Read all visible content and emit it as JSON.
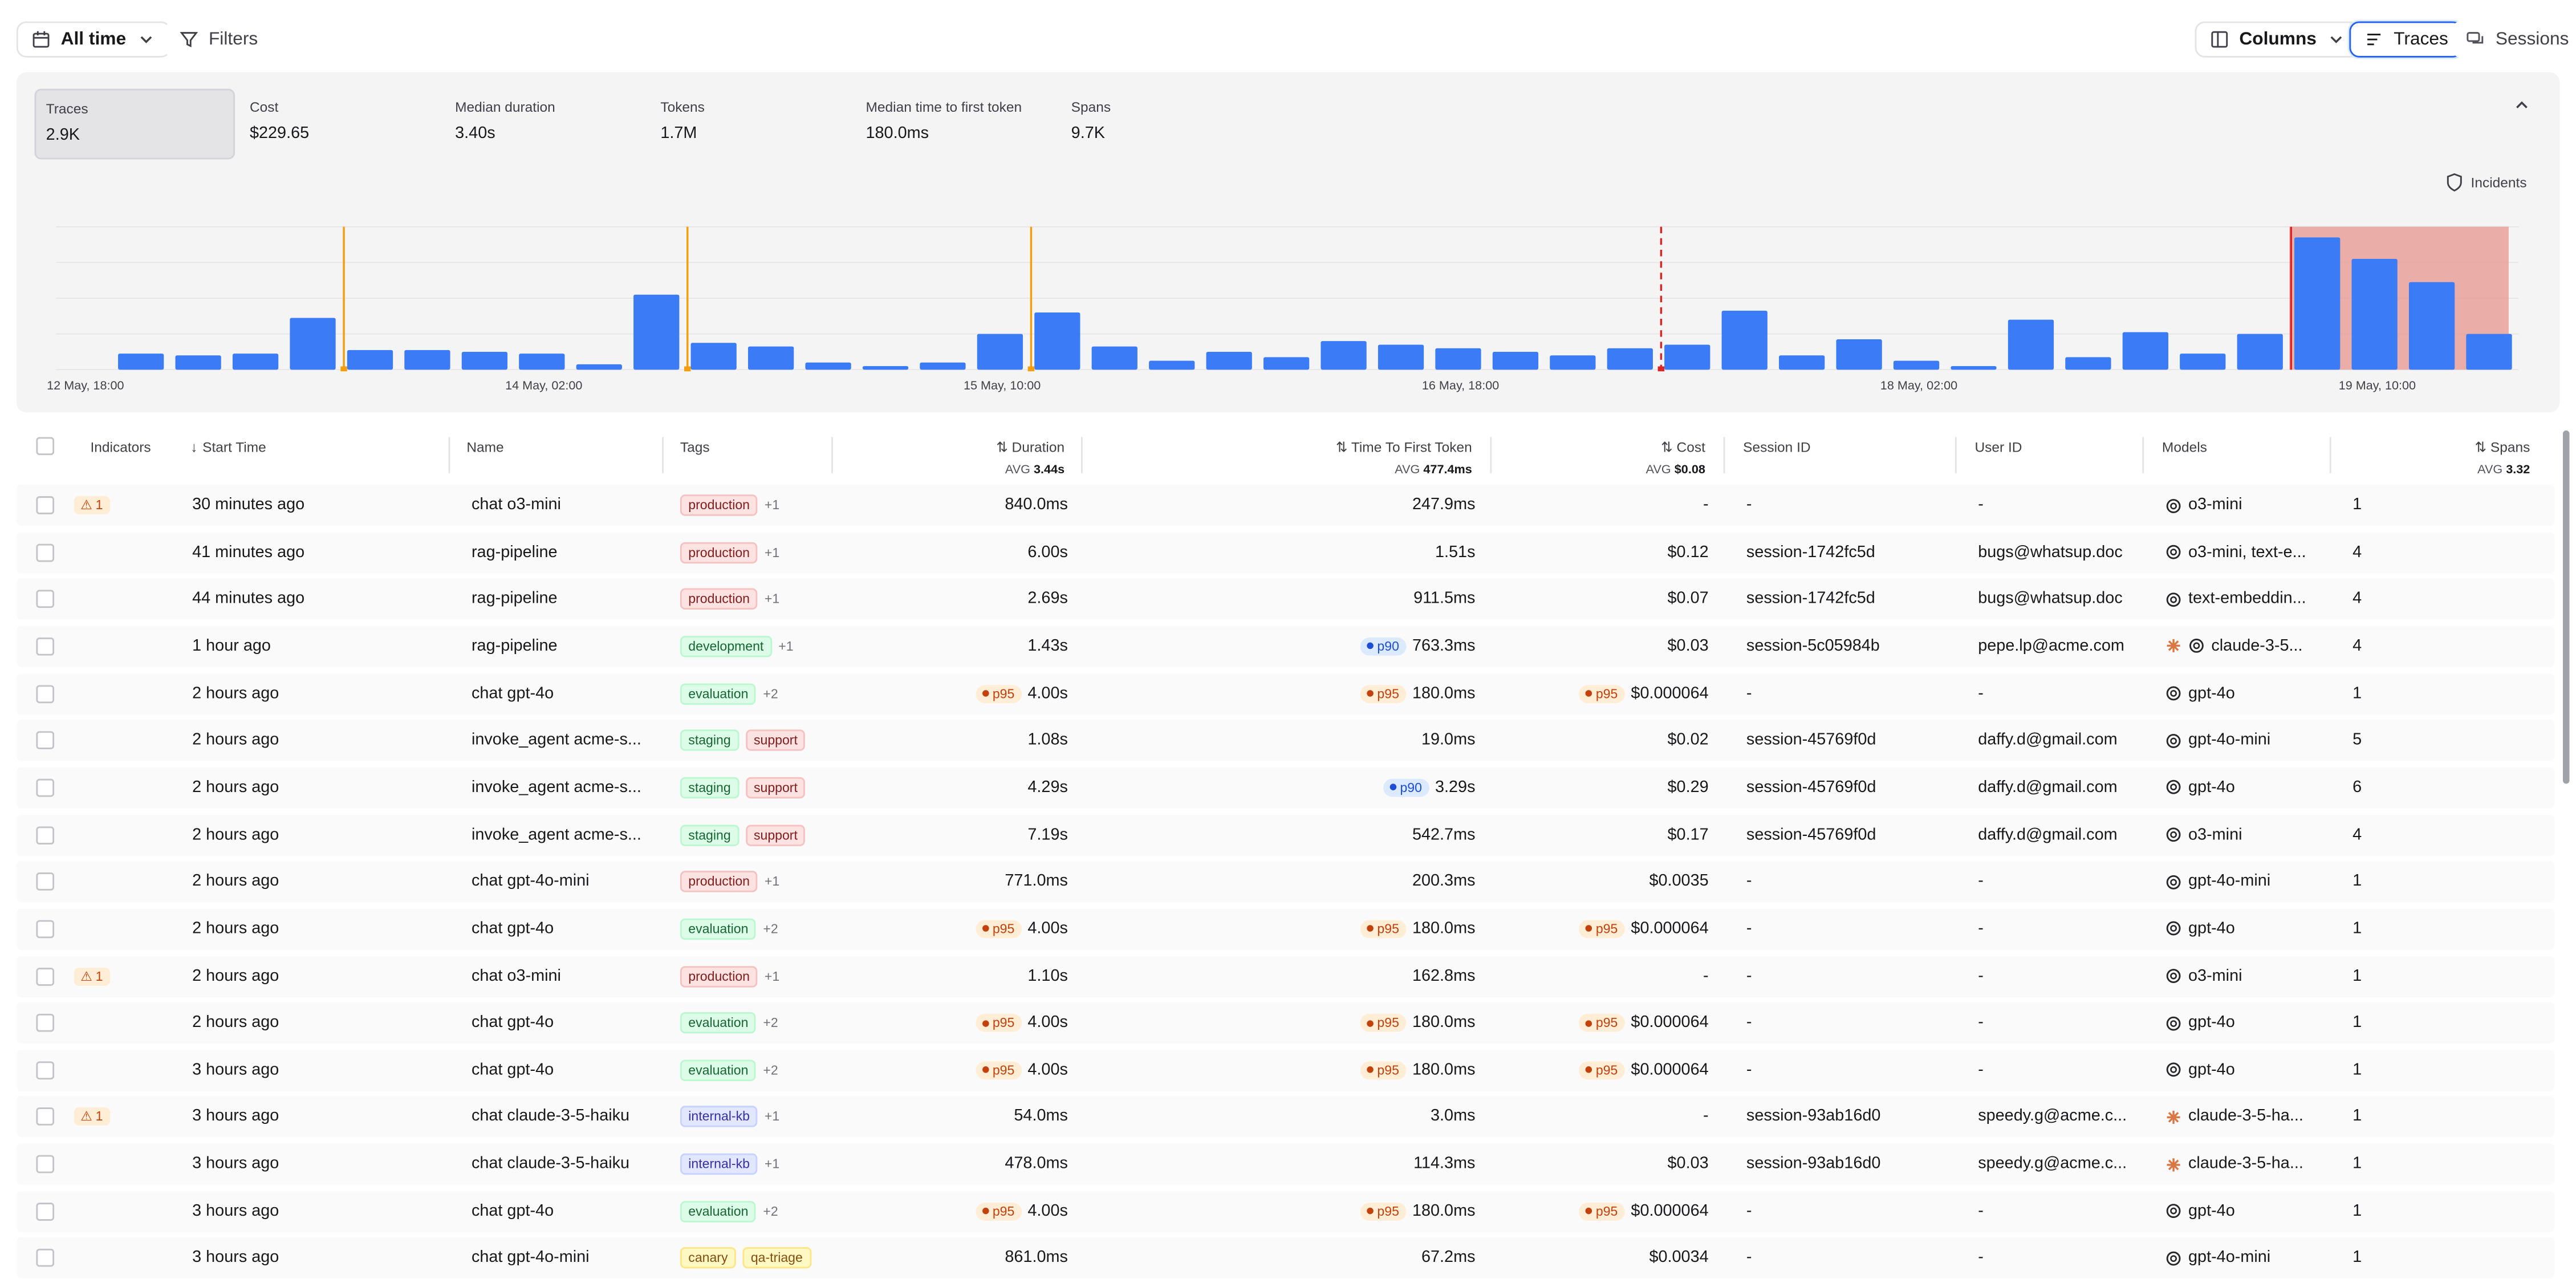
{
  "toolbar": {
    "time_range": "All time",
    "filters": "Filters",
    "columns": "Columns",
    "traces_tab": "Traces",
    "sessions_tab": "Sessions"
  },
  "metrics": [
    {
      "label": "Traces",
      "value": "2.9K",
      "selected": true
    },
    {
      "label": "Cost",
      "value": "$229.65"
    },
    {
      "label": "Median duration",
      "value": "3.40s"
    },
    {
      "label": "Tokens",
      "value": "1.7M"
    },
    {
      "label": "Median time to first token",
      "value": "180.0ms"
    },
    {
      "label": "Spans",
      "value": "9.7K"
    }
  ],
  "incidents_label": "Incidents",
  "chart_data": {
    "type": "bar",
    "x_tick_labels": [
      "12 May, 18:00",
      "14 May, 02:00",
      "15 May, 10:00",
      "16 May, 18:00",
      "18 May, 02:00",
      "19 May, 10:00"
    ],
    "values": [
      0,
      9,
      8,
      9,
      29,
      11,
      11,
      10,
      9,
      3,
      42,
      15,
      13,
      4,
      2,
      4,
      20,
      32,
      13,
      5,
      10,
      7,
      16,
      14,
      12,
      10,
      8,
      12,
      14,
      33,
      8,
      17,
      5,
      2,
      28,
      7,
      21,
      9,
      20,
      74,
      62,
      49,
      20
    ],
    "bar_color": "#3b7cf6",
    "marker_color": "#f59e0b",
    "incident_color": "#dc2626",
    "incident_fill": "#e8a09a",
    "markers_at": [
      5,
      11,
      17
    ],
    "dashed_incident_at": 28,
    "incident_range": [
      39,
      42
    ],
    "ylim": [
      0,
      80
    ],
    "grid": true
  },
  "table": {
    "headers": {
      "indicators": "Indicators",
      "start_time": "Start Time",
      "name": "Name",
      "tags": "Tags",
      "duration": "Duration",
      "duration_avg_label": "AVG",
      "duration_avg": "3.44s",
      "ttft": "Time To First Token",
      "ttft_avg_label": "AVG",
      "ttft_avg": "477.4ms",
      "cost": "Cost",
      "cost_avg_label": "AVG",
      "cost_avg": "$0.08",
      "session": "Session ID",
      "user": "User ID",
      "models": "Models",
      "spans": "Spans",
      "spans_avg_label": "AVG",
      "spans_avg": "3.32"
    },
    "rows": [
      {
        "warn": "1",
        "start": "30 minutes ago",
        "name": "chat o3-mini",
        "tags": [
          {
            "t": "production",
            "c": "production"
          }
        ],
        "more": "+1",
        "dur": "840.0ms",
        "ttft": "247.9ms",
        "cost": "-",
        "session": "-",
        "user": "-",
        "model": "o3-mini",
        "micon": "openai",
        "spans": "1"
      },
      {
        "warn": "",
        "start": "41 minutes ago",
        "name": "rag-pipeline",
        "tags": [
          {
            "t": "production",
            "c": "production"
          }
        ],
        "more": "+1",
        "dur": "6.00s",
        "ttft": "1.51s",
        "cost": "$0.12",
        "session": "session-1742fc5d",
        "user": "bugs@whatsup.doc",
        "model": "o3-mini, text-e...",
        "micon": "openai",
        "spans": "4"
      },
      {
        "warn": "",
        "start": "44 minutes ago",
        "name": "rag-pipeline",
        "tags": [
          {
            "t": "production",
            "c": "production"
          }
        ],
        "more": "+1",
        "dur": "2.69s",
        "ttft": "911.5ms",
        "cost": "$0.07",
        "session": "session-1742fc5d",
        "user": "bugs@whatsup.doc",
        "model": "text-embeddin...",
        "micon": "openai",
        "spans": "4"
      },
      {
        "warn": "",
        "start": "1 hour ago",
        "name": "rag-pipeline",
        "tags": [
          {
            "t": "development",
            "c": "development"
          }
        ],
        "more": "+1",
        "dur": "1.43s",
        "ttft_pill": "p90",
        "ttft": "763.3ms",
        "cost": "$0.03",
        "session": "session-5c05984b",
        "user": "pepe.lp@acme.com",
        "model": "claude-3-5...",
        "micon": "both",
        "spans": "4"
      },
      {
        "warn": "",
        "start": "2 hours ago",
        "name": "chat gpt-4o",
        "tags": [
          {
            "t": "evaluation",
            "c": "evaluation"
          }
        ],
        "more": "+2",
        "dur_pill": "p95",
        "dur": "4.00s",
        "ttft_pill": "p95",
        "ttft": "180.0ms",
        "cost_pill": "p95",
        "cost": "$0.000064",
        "session": "-",
        "user": "-",
        "model": "gpt-4o",
        "micon": "openai",
        "spans": "1"
      },
      {
        "warn": "",
        "start": "2 hours ago",
        "name": "invoke_agent acme-s...",
        "tags": [
          {
            "t": "staging",
            "c": "staging"
          },
          {
            "t": "support",
            "c": "support"
          }
        ],
        "more": "",
        "dur": "1.08s",
        "ttft": "19.0ms",
        "cost": "$0.02",
        "session": "session-45769f0d",
        "user": "daffy.d@gmail.com",
        "model": "gpt-4o-mini",
        "micon": "openai",
        "spans": "5"
      },
      {
        "warn": "",
        "start": "2 hours ago",
        "name": "invoke_agent acme-s...",
        "tags": [
          {
            "t": "staging",
            "c": "staging"
          },
          {
            "t": "support",
            "c": "support"
          }
        ],
        "more": "",
        "dur": "4.29s",
        "ttft_pill": "p90",
        "ttft": "3.29s",
        "cost": "$0.29",
        "session": "session-45769f0d",
        "user": "daffy.d@gmail.com",
        "model": "gpt-4o",
        "micon": "openai",
        "spans": "6"
      },
      {
        "warn": "",
        "start": "2 hours ago",
        "name": "invoke_agent acme-s...",
        "tags": [
          {
            "t": "staging",
            "c": "staging"
          },
          {
            "t": "support",
            "c": "support"
          }
        ],
        "more": "",
        "dur": "7.19s",
        "ttft": "542.7ms",
        "cost": "$0.17",
        "session": "session-45769f0d",
        "user": "daffy.d@gmail.com",
        "model": "o3-mini",
        "micon": "openai",
        "spans": "4"
      },
      {
        "warn": "",
        "start": "2 hours ago",
        "name": "chat gpt-4o-mini",
        "tags": [
          {
            "t": "production",
            "c": "production"
          }
        ],
        "more": "+1",
        "dur": "771.0ms",
        "ttft": "200.3ms",
        "cost": "$0.0035",
        "session": "-",
        "user": "-",
        "model": "gpt-4o-mini",
        "micon": "openai",
        "spans": "1"
      },
      {
        "warn": "",
        "start": "2 hours ago",
        "name": "chat gpt-4o",
        "tags": [
          {
            "t": "evaluation",
            "c": "evaluation"
          }
        ],
        "more": "+2",
        "dur_pill": "p95",
        "dur": "4.00s",
        "ttft_pill": "p95",
        "ttft": "180.0ms",
        "cost_pill": "p95",
        "cost": "$0.000064",
        "session": "-",
        "user": "-",
        "model": "gpt-4o",
        "micon": "openai",
        "spans": "1"
      },
      {
        "warn": "1",
        "start": "2 hours ago",
        "name": "chat o3-mini",
        "tags": [
          {
            "t": "production",
            "c": "production"
          }
        ],
        "more": "+1",
        "dur": "1.10s",
        "ttft": "162.8ms",
        "cost": "-",
        "session": "-",
        "user": "-",
        "model": "o3-mini",
        "micon": "openai",
        "spans": "1"
      },
      {
        "warn": "",
        "start": "2 hours ago",
        "name": "chat gpt-4o",
        "tags": [
          {
            "t": "evaluation",
            "c": "evaluation"
          }
        ],
        "more": "+2",
        "dur_pill": "p95",
        "dur": "4.00s",
        "ttft_pill": "p95",
        "ttft": "180.0ms",
        "cost_pill": "p95",
        "cost": "$0.000064",
        "session": "-",
        "user": "-",
        "model": "gpt-4o",
        "micon": "openai",
        "spans": "1"
      },
      {
        "warn": "",
        "start": "3 hours ago",
        "name": "chat gpt-4o",
        "tags": [
          {
            "t": "evaluation",
            "c": "evaluation"
          }
        ],
        "more": "+2",
        "dur_pill": "p95",
        "dur": "4.00s",
        "ttft_pill": "p95",
        "ttft": "180.0ms",
        "cost_pill": "p95",
        "cost": "$0.000064",
        "session": "-",
        "user": "-",
        "model": "gpt-4o",
        "micon": "openai",
        "spans": "1"
      },
      {
        "warn": "1",
        "start": "3 hours ago",
        "name": "chat claude-3-5-haiku",
        "tags": [
          {
            "t": "internal-kb",
            "c": "internal"
          }
        ],
        "more": "+1",
        "dur": "54.0ms",
        "ttft": "3.0ms",
        "cost": "-",
        "session": "session-93ab16d0",
        "user": "speedy.g@acme.c...",
        "model": "claude-3-5-ha...",
        "micon": "anthropic",
        "spans": "1"
      },
      {
        "warn": "",
        "start": "3 hours ago",
        "name": "chat claude-3-5-haiku",
        "tags": [
          {
            "t": "internal-kb",
            "c": "internal"
          }
        ],
        "more": "+1",
        "dur": "478.0ms",
        "ttft": "114.3ms",
        "cost": "$0.03",
        "session": "session-93ab16d0",
        "user": "speedy.g@acme.c...",
        "model": "claude-3-5-ha...",
        "micon": "anthropic",
        "spans": "1"
      },
      {
        "warn": "",
        "start": "3 hours ago",
        "name": "chat gpt-4o",
        "tags": [
          {
            "t": "evaluation",
            "c": "evaluation"
          }
        ],
        "more": "+2",
        "dur_pill": "p95",
        "dur": "4.00s",
        "ttft_pill": "p95",
        "ttft": "180.0ms",
        "cost_pill": "p95",
        "cost": "$0.000064",
        "session": "-",
        "user": "-",
        "model": "gpt-4o",
        "micon": "openai",
        "spans": "1"
      },
      {
        "warn": "",
        "start": "3 hours ago",
        "name": "chat gpt-4o-mini",
        "tags": [
          {
            "t": "canary",
            "c": "canary"
          },
          {
            "t": "qa-triage",
            "c": "qa"
          }
        ],
        "more": "",
        "dur": "861.0ms",
        "ttft": "67.2ms",
        "cost": "$0.0034",
        "session": "-",
        "user": "-",
        "model": "gpt-4o-mini",
        "micon": "openai",
        "spans": "1"
      }
    ]
  }
}
